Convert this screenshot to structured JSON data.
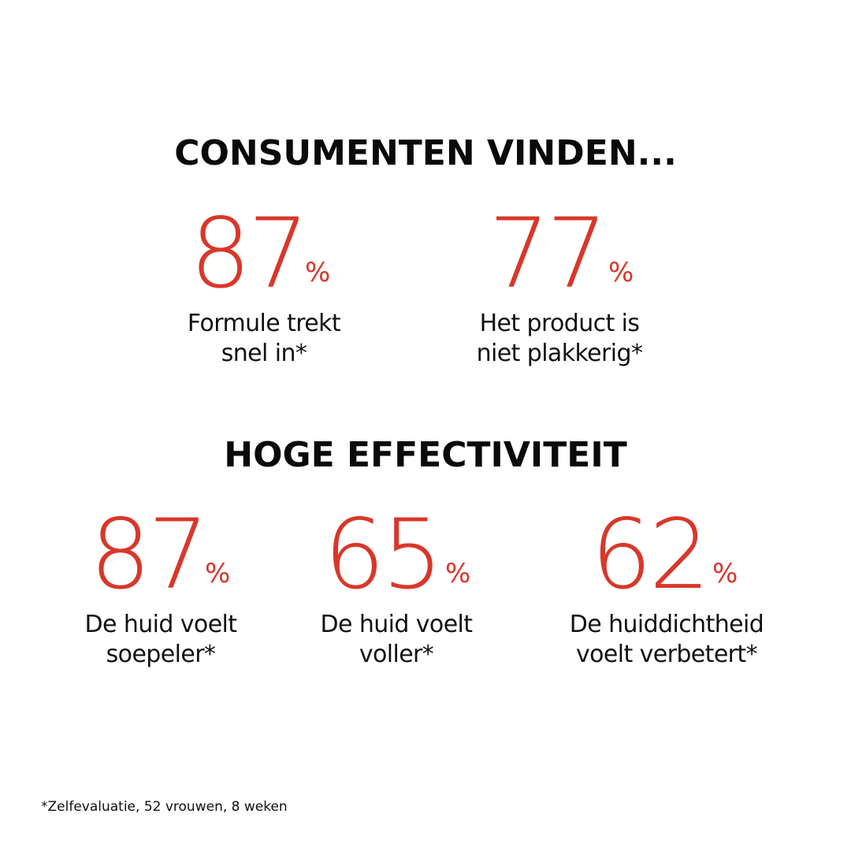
{
  "sections": [
    {
      "heading": "CONSUMENTEN VINDEN...",
      "stats": [
        {
          "value": "87",
          "unit": "%",
          "label_line1": "Formule trekt",
          "label_line2": "snel in*"
        },
        {
          "value": "77",
          "unit": "%",
          "label_line1": "Het product is",
          "label_line2": "niet plakkerig*"
        }
      ]
    },
    {
      "heading": "HOGE EFFECTIVITEIT",
      "stats": [
        {
          "value": "87",
          "unit": "%",
          "label_line1": "De huid voelt",
          "label_line2": "soepeler*"
        },
        {
          "value": "65",
          "unit": "%",
          "label_line1": "De huid voelt",
          "label_line2": "voller*"
        },
        {
          "value": "62",
          "unit": "%",
          "label_line1": "De huiddichtheid",
          "label_line2": "voelt verbetert*"
        }
      ]
    }
  ],
  "footnote": "*Zelfevaluatie, 52 vrouwen, 8 weken",
  "colors": {
    "accent": "#d9372a",
    "text": "#111111",
    "background": "#ffffff"
  }
}
